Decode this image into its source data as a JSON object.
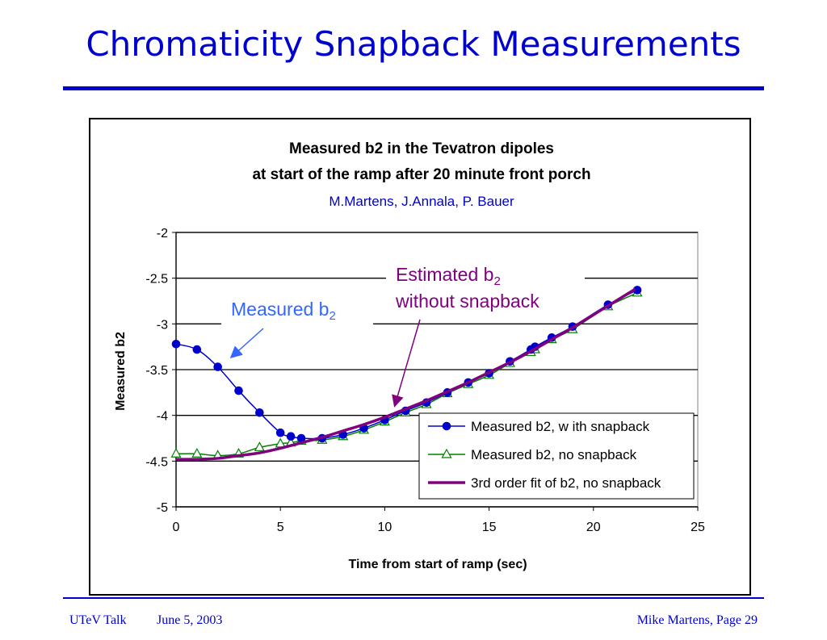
{
  "slide": {
    "title": "Chromaticity Snapback Measurements",
    "footer_left": "UTeV Talk",
    "footer_date": "June 5, 2003",
    "footer_right": "Mike Martens, Page 29"
  },
  "colors": {
    "title": "#0000cc",
    "series_snapback": "#0000cc",
    "series_nosnap": "#008000",
    "series_fit": "#800080",
    "annotation_blue": "#3366ff",
    "annotation_purple": "#800080",
    "plot_bg": "#c0c0c0"
  },
  "chart_data": {
    "type": "line",
    "title": "Measured b2 in the Tevatron dipoles",
    "subtitle": "at start of the ramp after 20 minute front porch",
    "authors": "M.Martens, J.Annala, P. Bauer",
    "xlabel": "Time from start of ramp (sec)",
    "ylabel": "Measured b2",
    "xlim": [
      0,
      25
    ],
    "ylim": [
      -5,
      -2
    ],
    "xticks": [
      "0",
      "5",
      "10",
      "15",
      "20",
      "25"
    ],
    "yticks": [
      "-2",
      "-2.5",
      "-3",
      "-3.5",
      "-4",
      "-4.5",
      "-5"
    ],
    "grid": "horizontal",
    "legend_position": "bottom-right",
    "series": [
      {
        "name": "Measured b2, w ith snapback",
        "marker": "circle",
        "x": [
          0,
          1,
          2,
          3,
          4,
          5,
          5.5,
          6,
          7,
          8,
          9,
          10,
          11,
          12,
          13,
          14,
          15,
          16,
          17,
          17.2,
          18,
          19,
          20.7,
          22.1
        ],
        "y": [
          -3.22,
          -3.28,
          -3.47,
          -3.73,
          -3.97,
          -4.19,
          -4.23,
          -4.25,
          -4.25,
          -4.21,
          -4.14,
          -4.05,
          -3.95,
          -3.86,
          -3.75,
          -3.64,
          -3.54,
          -3.41,
          -3.28,
          -3.25,
          -3.15,
          -3.03,
          -2.79,
          -2.63
        ]
      },
      {
        "name": "Measured b2, no snapback",
        "marker": "triangle",
        "x": [
          0,
          1,
          2,
          3,
          4,
          5,
          5.5,
          6,
          7,
          8,
          9,
          10,
          11,
          12,
          13,
          14,
          15,
          16,
          17,
          17.2,
          18,
          19,
          20.7,
          22.1
        ],
        "y": [
          -4.42,
          -4.42,
          -4.44,
          -4.42,
          -4.35,
          -4.31,
          -4.3,
          -4.28,
          -4.27,
          -4.23,
          -4.16,
          -4.07,
          -3.97,
          -3.88,
          -3.76,
          -3.66,
          -3.56,
          -3.43,
          -3.31,
          -3.28,
          -3.17,
          -3.06,
          -2.81,
          -2.66
        ]
      },
      {
        "name": "3rd order fit of b2, no snapback",
        "marker": "none",
        "x": [
          0,
          1,
          2,
          3,
          4,
          5,
          6,
          7,
          8,
          9,
          10,
          11,
          12,
          13,
          14,
          15,
          16,
          17,
          18,
          19,
          20,
          21,
          22
        ],
        "y": [
          -4.48,
          -4.48,
          -4.47,
          -4.44,
          -4.41,
          -4.36,
          -4.3,
          -4.24,
          -4.17,
          -4.1,
          -4.02,
          -3.93,
          -3.84,
          -3.74,
          -3.64,
          -3.53,
          -3.42,
          -3.3,
          -3.17,
          -3.04,
          -2.9,
          -2.76,
          -2.62
        ]
      }
    ],
    "annotations": [
      {
        "text": "Measured b",
        "sub": "2"
      },
      {
        "text": "Estimated b",
        "sub": "2",
        "line2": "without snapback"
      }
    ]
  }
}
